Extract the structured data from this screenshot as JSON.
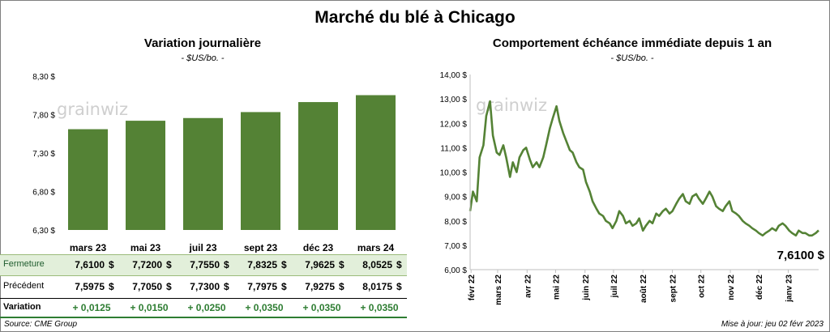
{
  "header": {
    "title": "Marché du blé à Chicago"
  },
  "left_panel": {
    "title": "Variation  journalière",
    "subtitle": "- $US/bo. -",
    "watermark": "grainwiz"
  },
  "right_panel": {
    "title": "Comportement  échéance immédiate depuis 1 an",
    "subtitle": "- $US/bo. -",
    "watermark": "grainwiz",
    "last_value_label": "7,6100 $"
  },
  "table": {
    "row_labels": {
      "close": "Fermeture",
      "previous": "Précédent",
      "variation": "Variation"
    },
    "close": [
      "7,6100",
      "7,7200",
      "7,7550",
      "7,8325",
      "7,9625",
      "8,0525"
    ],
    "previous": [
      "7,5975",
      "7,7050",
      "7,7300",
      "7,7975",
      "7,9275",
      "8,0175"
    ],
    "variation": [
      "+ 0,0125",
      "+ 0,0150",
      "+ 0,0250",
      "+ 0,0350",
      "+ 0,0350",
      "+ 0,0350"
    ],
    "currency": "$"
  },
  "footer": {
    "source": "Source: CME Group",
    "update": "Mise à jour: jeu 02 févr 2023"
  },
  "colors": {
    "bar": "#548235",
    "line": "#548235",
    "close_band": "#e2efda",
    "variation_text": "#2e7d32"
  },
  "chart_data": [
    {
      "type": "bar",
      "categories": [
        "mars 23",
        "mai 23",
        "juil 23",
        "sept 23",
        "déc 23",
        "mars 24"
      ],
      "values": [
        7.61,
        7.72,
        7.755,
        7.8325,
        7.9625,
        8.0525
      ],
      "ylim": [
        6.3,
        8.3
      ],
      "yticks": [
        6.3,
        6.8,
        7.3,
        7.8,
        8.3
      ],
      "ytick_labels": [
        "6,30 $",
        "6,80 $",
        "7,30 $",
        "7,80 $",
        "8,30 $"
      ],
      "grid": false
    },
    {
      "type": "line",
      "xlim": [
        "2022-01-31",
        "2023-02-02"
      ],
      "ylim": [
        6.0,
        14.0
      ],
      "yticks": [
        6,
        7,
        8,
        9,
        10,
        11,
        12,
        13,
        14
      ],
      "ytick_labels": [
        "6,00 $",
        "7,00 $",
        "8,00 $",
        "9,00 $",
        "10,00 $",
        "11,00 $",
        "12,00 $",
        "13,00 $",
        "14,00 $"
      ],
      "xticks": [
        "2022-02-01",
        "2022-03-01",
        "2022-04-01",
        "2022-05-01",
        "2022-06-01",
        "2022-07-01",
        "2022-08-01",
        "2022-09-01",
        "2022-10-01",
        "2022-11-01",
        "2022-12-01",
        "2023-01-01"
      ],
      "xtick_labels": [
        "févr 22",
        "mars 22",
        "avr 22",
        "mai 22",
        "juin 22",
        "juil 22",
        "août 22",
        "sept 22",
        "oct 22",
        "nov 22",
        "déc 22",
        "janv 23"
      ],
      "series": [
        {
          "x": [
            "2022-01-31",
            "2022-02-03",
            "2022-02-07",
            "2022-02-10",
            "2022-02-14",
            "2022-02-17",
            "2022-02-21",
            "2022-02-24",
            "2022-02-28",
            "2022-03-03",
            "2022-03-07",
            "2022-03-10",
            "2022-03-14",
            "2022-03-17",
            "2022-03-21",
            "2022-03-24",
            "2022-03-28",
            "2022-03-31",
            "2022-04-04",
            "2022-04-07",
            "2022-04-11",
            "2022-04-14",
            "2022-04-18",
            "2022-04-21",
            "2022-04-25",
            "2022-04-28",
            "2022-05-02",
            "2022-05-05",
            "2022-05-09",
            "2022-05-12",
            "2022-05-16",
            "2022-05-19",
            "2022-05-23",
            "2022-05-26",
            "2022-05-30",
            "2022-06-02",
            "2022-06-06",
            "2022-06-09",
            "2022-06-13",
            "2022-06-16",
            "2022-06-20",
            "2022-06-23",
            "2022-06-27",
            "2022-06-30",
            "2022-07-04",
            "2022-07-07",
            "2022-07-11",
            "2022-07-14",
            "2022-07-18",
            "2022-07-21",
            "2022-07-25",
            "2022-07-28",
            "2022-08-01",
            "2022-08-04",
            "2022-08-08",
            "2022-08-11",
            "2022-08-15",
            "2022-08-18",
            "2022-08-22",
            "2022-08-25",
            "2022-08-29",
            "2022-09-01",
            "2022-09-05",
            "2022-09-08",
            "2022-09-12",
            "2022-09-15",
            "2022-09-19",
            "2022-09-22",
            "2022-09-26",
            "2022-09-29",
            "2022-10-03",
            "2022-10-06",
            "2022-10-10",
            "2022-10-13",
            "2022-10-17",
            "2022-10-20",
            "2022-10-24",
            "2022-10-27",
            "2022-10-31",
            "2022-11-03",
            "2022-11-07",
            "2022-11-10",
            "2022-11-14",
            "2022-11-17",
            "2022-11-21",
            "2022-11-24",
            "2022-11-28",
            "2022-12-01",
            "2022-12-05",
            "2022-12-08",
            "2022-12-12",
            "2022-12-15",
            "2022-12-19",
            "2022-12-22",
            "2022-12-26",
            "2022-12-29",
            "2023-01-02",
            "2023-01-05",
            "2023-01-09",
            "2023-01-12",
            "2023-01-16",
            "2023-01-19",
            "2023-01-23",
            "2023-01-26",
            "2023-01-30",
            "2023-02-02"
          ],
          "values": [
            8.4,
            9.2,
            8.8,
            10.6,
            11.1,
            12.3,
            12.9,
            11.5,
            10.8,
            10.7,
            11.1,
            10.6,
            9.8,
            10.4,
            10.0,
            10.6,
            10.9,
            11.0,
            10.5,
            10.2,
            10.4,
            10.2,
            10.6,
            11.1,
            11.8,
            12.2,
            12.7,
            12.1,
            11.6,
            11.3,
            10.9,
            10.8,
            10.4,
            10.2,
            10.1,
            9.6,
            9.2,
            8.8,
            8.5,
            8.3,
            8.2,
            8.0,
            7.9,
            7.7,
            8.0,
            8.4,
            8.2,
            7.9,
            8.0,
            7.8,
            7.9,
            8.1,
            7.6,
            7.8,
            8.0,
            7.9,
            8.3,
            8.2,
            8.4,
            8.5,
            8.3,
            8.4,
            8.7,
            8.9,
            9.1,
            8.8,
            8.7,
            9.0,
            9.1,
            8.9,
            8.7,
            8.9,
            9.2,
            9.0,
            8.6,
            8.5,
            8.4,
            8.6,
            8.8,
            8.4,
            8.3,
            8.2,
            8.0,
            7.9,
            7.8,
            7.7,
            7.6,
            7.5,
            7.4,
            7.5,
            7.6,
            7.7,
            7.6,
            7.8,
            7.9,
            7.8,
            7.6,
            7.5,
            7.4,
            7.6,
            7.5,
            7.5,
            7.4,
            7.4,
            7.5,
            7.61
          ]
        }
      ],
      "grid": false
    }
  ]
}
